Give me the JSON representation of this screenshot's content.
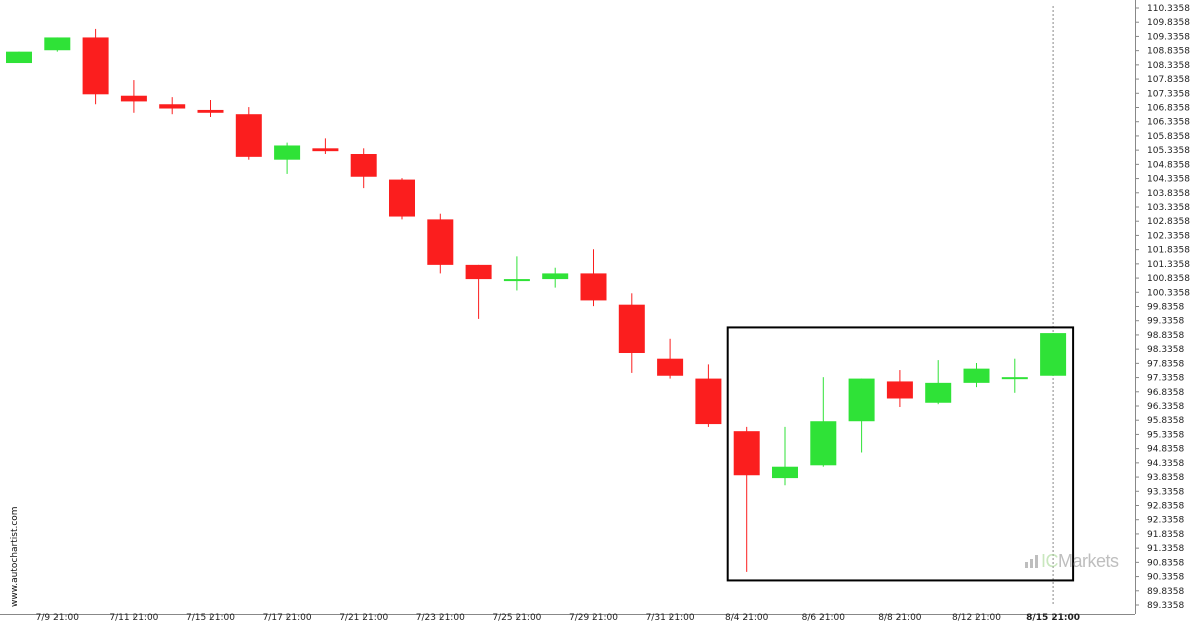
{
  "watermark": {
    "site": "www.autochartist.com",
    "brand_prefix": "IC",
    "brand_suffix": "Markets",
    "brand_icon": "bar-chart-icon"
  },
  "colors": {
    "up": "#2fe237",
    "down": "#fb1e1e",
    "axis": "#888888",
    "pattern_box": "#000000",
    "crosshair": "#888888"
  },
  "chart_data": {
    "type": "candlestick",
    "title": "",
    "ylim": [
      89.3358,
      110.3358
    ],
    "y_ticks": [
      110.3358,
      109.8358,
      109.3358,
      108.8358,
      108.3358,
      107.8358,
      107.3358,
      106.8358,
      106.3358,
      105.8358,
      105.3358,
      104.8358,
      104.3358,
      103.8358,
      103.3358,
      102.8358,
      102.3358,
      101.8358,
      101.3358,
      100.8358,
      100.3358,
      99.8358,
      99.3358,
      98.8358,
      98.3358,
      97.8358,
      97.3358,
      96.8358,
      96.3358,
      95.8358,
      95.3358,
      94.8358,
      94.3358,
      93.8358,
      93.3358,
      92.8358,
      92.3358,
      91.8358,
      91.3358,
      90.8358,
      90.3358,
      89.8358,
      89.3358
    ],
    "y_tick_labels": [
      "110.3358",
      "109.8358",
      "109.3358",
      "108.8358",
      "108.3358",
      "107.8358",
      "107.3358",
      "106.8358",
      "106.3358",
      "105.8358",
      "105.3358",
      "104.8358",
      "104.3358",
      "103.8358",
      "103.3358",
      "102.8358",
      "102.3358",
      "101.8358",
      "101.3358",
      "100.8358",
      "100.3358",
      "99.8358",
      "99.3358",
      "98.8358",
      "98.3358",
      "97.8358",
      "97.3358",
      "96.8358",
      "96.3358",
      "95.8358",
      "95.3358",
      "94.8358",
      "94.3358",
      "93.8358",
      "93.3358",
      "92.8358",
      "92.3358",
      "91.8358",
      "91.3358",
      "90.8358",
      "90.3358",
      "89.8358",
      "89.3358"
    ],
    "x_tick_labels": [
      {
        "candle": 1,
        "label": "7/9 21:00"
      },
      {
        "candle": 3,
        "label": "7/11 21:00"
      },
      {
        "candle": 5,
        "label": "7/15 21:00"
      },
      {
        "candle": 7,
        "label": "7/17 21:00"
      },
      {
        "candle": 9,
        "label": "7/21 21:00"
      },
      {
        "candle": 11,
        "label": "7/23 21:00"
      },
      {
        "candle": 13,
        "label": "7/25 21:00"
      },
      {
        "candle": 15,
        "label": "7/29 21:00"
      },
      {
        "candle": 17,
        "label": "7/31 21:00"
      },
      {
        "candle": 19,
        "label": "8/4 21:00"
      },
      {
        "candle": 21,
        "label": "8/6 21:00"
      },
      {
        "candle": 23,
        "label": "8/8 21:00"
      },
      {
        "candle": 25,
        "label": "8/12 21:00"
      },
      {
        "candle": 27,
        "label": "8/15 21:00",
        "highlight": true
      }
    ],
    "candles": [
      {
        "open": 108.4,
        "high": 108.8,
        "low": 108.4,
        "close": 108.8
      },
      {
        "open": 108.85,
        "high": 109.3,
        "low": 108.8,
        "close": 109.3
      },
      {
        "open": 109.3,
        "high": 109.6,
        "low": 106.95,
        "close": 107.3
      },
      {
        "open": 107.25,
        "high": 107.8,
        "low": 106.65,
        "close": 107.05
      },
      {
        "open": 106.95,
        "high": 107.2,
        "low": 106.6,
        "close": 106.8
      },
      {
        "open": 106.75,
        "high": 107.1,
        "low": 106.5,
        "close": 106.65
      },
      {
        "open": 106.6,
        "high": 106.85,
        "low": 105.0,
        "close": 105.1
      },
      {
        "open": 105.0,
        "high": 105.6,
        "low": 104.5,
        "close": 105.5
      },
      {
        "open": 105.4,
        "high": 105.75,
        "low": 105.2,
        "close": 105.3
      },
      {
        "open": 105.2,
        "high": 105.4,
        "low": 104.0,
        "close": 104.4
      },
      {
        "open": 104.3,
        "high": 104.35,
        "low": 102.9,
        "close": 103.0
      },
      {
        "open": 102.9,
        "high": 103.1,
        "low": 101.0,
        "close": 101.3
      },
      {
        "open": 101.3,
        "high": 101.3,
        "low": 99.4,
        "close": 100.8
      },
      {
        "open": 100.8,
        "high": 101.6,
        "low": 100.4,
        "close": 100.8
      },
      {
        "open": 100.8,
        "high": 101.2,
        "low": 100.5,
        "close": 101.0
      },
      {
        "open": 101.0,
        "high": 101.85,
        "low": 99.85,
        "close": 100.05
      },
      {
        "open": 99.9,
        "high": 100.3,
        "low": 97.5,
        "close": 98.2
      },
      {
        "open": 98.0,
        "high": 98.7,
        "low": 97.3,
        "close": 97.4
      },
      {
        "open": 97.3,
        "high": 97.8,
        "low": 95.6,
        "close": 95.7
      },
      {
        "open": 95.45,
        "high": 95.6,
        "low": 90.5,
        "close": 93.9
      },
      {
        "open": 93.8,
        "high": 95.6,
        "low": 93.55,
        "close": 94.2
      },
      {
        "open": 94.25,
        "high": 97.35,
        "low": 94.2,
        "close": 95.8
      },
      {
        "open": 95.8,
        "high": 97.3,
        "low": 94.7,
        "close": 97.3
      },
      {
        "open": 97.2,
        "high": 97.6,
        "low": 96.3,
        "close": 96.6
      },
      {
        "open": 96.45,
        "high": 97.95,
        "low": 96.4,
        "close": 97.15
      },
      {
        "open": 97.15,
        "high": 97.85,
        "low": 97.0,
        "close": 97.65
      },
      {
        "open": 97.35,
        "high": 98.0,
        "low": 96.8,
        "close": 97.35
      },
      {
        "open": 97.4,
        "high": 98.9,
        "low": 97.4,
        "close": 98.9
      }
    ],
    "pattern_box": {
      "from_candle": 19,
      "to_candle": 27,
      "top": 99.1,
      "bottom": 90.2
    },
    "crosshair_candle": 27,
    "grid": false,
    "legend": "none"
  }
}
